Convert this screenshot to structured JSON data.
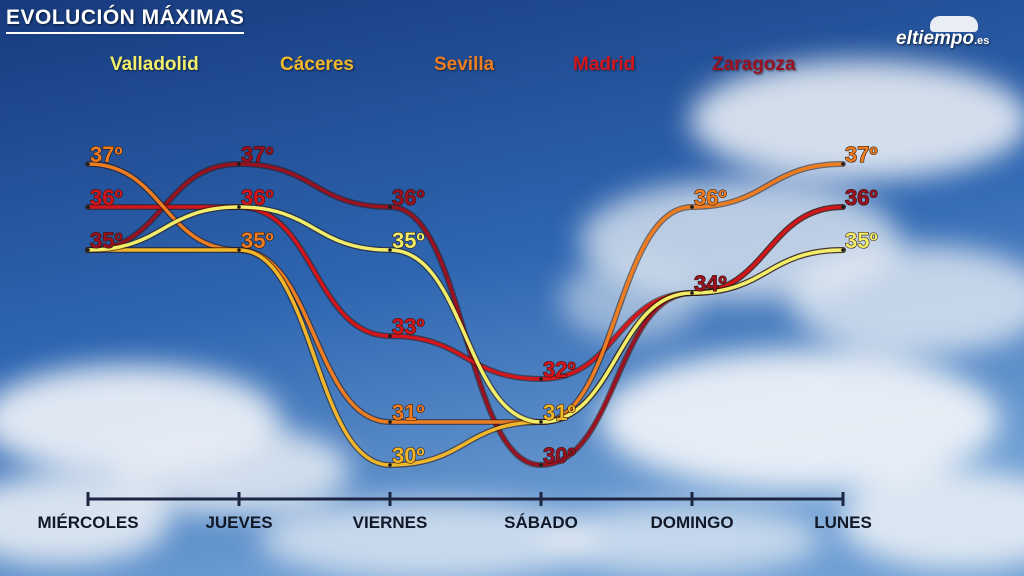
{
  "header": {
    "title": "EVOLUCIÓN MÁXIMAS",
    "logo_text": "eltiempo",
    "logo_tld": ".es"
  },
  "chart_data": {
    "type": "line",
    "title": "EVOLUCIÓN MÁXIMAS",
    "categories": [
      "MIÉRCOLES",
      "JUEVES",
      "VIERNES",
      "SÁBADO",
      "DOMINGO",
      "LUNES"
    ],
    "legend_position": "top",
    "grid": false,
    "ylim": [
      29,
      38
    ],
    "series": [
      {
        "name": "Valladolid",
        "color": "#f2ee6a",
        "values": [
          35,
          36,
          35,
          31,
          34,
          35
        ]
      },
      {
        "name": "Cáceres",
        "color": "#f1b72b",
        "values": [
          35,
          35,
          30,
          31,
          34,
          35
        ]
      },
      {
        "name": "Sevilla",
        "color": "#ee7d21",
        "values": [
          37,
          35,
          31,
          31,
          36,
          37
        ]
      },
      {
        "name": "Madrid",
        "color": "#d3151c",
        "values": [
          36,
          36,
          33,
          32,
          34,
          36
        ]
      },
      {
        "name": "Zaragoza",
        "color": "#9a1222",
        "values": [
          35,
          37,
          36,
          30,
          34,
          36
        ]
      }
    ],
    "labels": [
      {
        "text": "37º",
        "day": 0,
        "value": 37,
        "series": 2
      },
      {
        "text": "36º",
        "day": 0,
        "value": 36,
        "series": 3
      },
      {
        "text": "35º",
        "day": 0,
        "value": 35,
        "series": 4
      },
      {
        "text": "37º",
        "day": 1,
        "value": 37,
        "series": 4
      },
      {
        "text": "36º",
        "day": 1,
        "value": 36,
        "series": 3
      },
      {
        "text": "35º",
        "day": 1,
        "value": 35,
        "series": 2
      },
      {
        "text": "36º",
        "day": 2,
        "value": 36,
        "series": 4
      },
      {
        "text": "35º",
        "day": 2,
        "value": 35,
        "series": 0
      },
      {
        "text": "33º",
        "day": 2,
        "value": 33,
        "series": 3
      },
      {
        "text": "31º",
        "day": 2,
        "value": 31,
        "series": 2
      },
      {
        "text": "30º",
        "day": 2,
        "value": 30,
        "series": 1
      },
      {
        "text": "32º",
        "day": 3,
        "value": 32,
        "series": 3
      },
      {
        "text": "31º",
        "day": 3,
        "value": 31,
        "series": 1
      },
      {
        "text": "30º",
        "day": 3,
        "value": 30,
        "series": 4
      },
      {
        "text": "36º",
        "day": 4,
        "value": 36,
        "series": 2
      },
      {
        "text": "34º",
        "day": 4,
        "value": 34,
        "series": 4
      },
      {
        "text": "37º",
        "day": 5,
        "value": 37,
        "series": 2
      },
      {
        "text": "36º",
        "day": 5,
        "value": 36,
        "series": 4
      },
      {
        "text": "35º",
        "day": 5,
        "value": 35,
        "series": 0
      }
    ]
  }
}
